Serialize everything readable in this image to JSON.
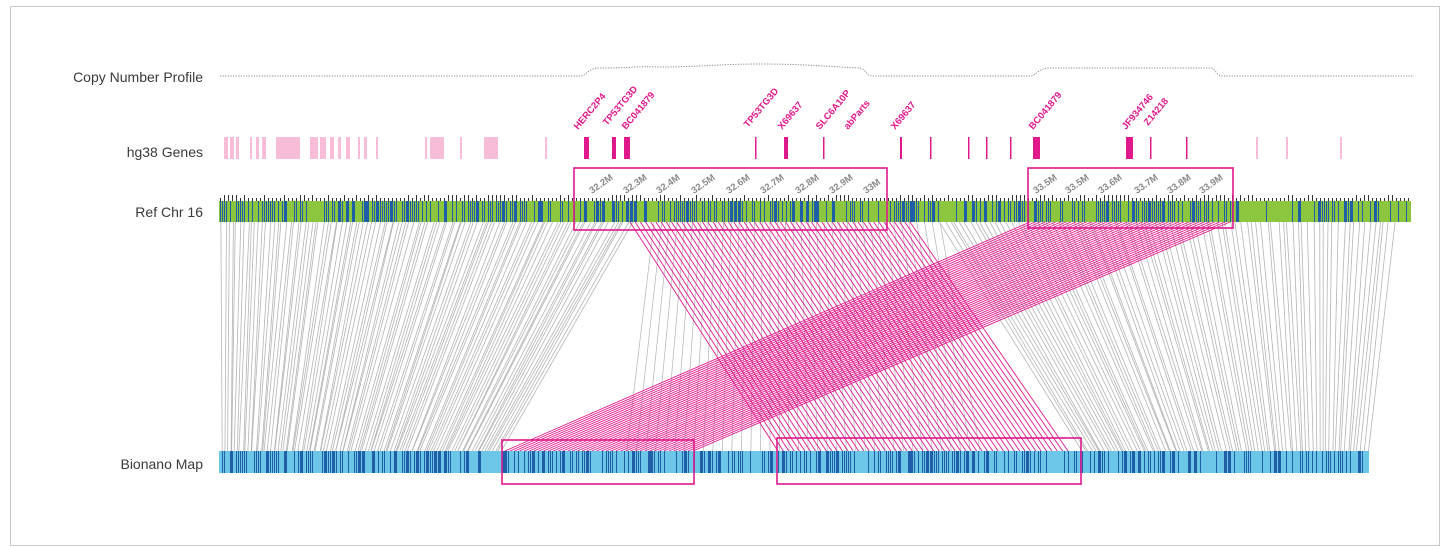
{
  "rows": {
    "copy_number": "Copy Number Profile",
    "genes": "hg38 Genes",
    "ref": "Ref Chr 16",
    "map": "Bionano Map"
  },
  "gene_names": [
    "HERC2P4",
    "TP53TG3D",
    "BC041879",
    "TP53TG3D",
    "X69637",
    "SLC6A10P",
    "abParts",
    "X69637",
    "BC041879",
    "JF934746",
    "Z14218"
  ],
  "ref_ticks": [
    "32.2M",
    "32.3M",
    "32.4M",
    "32.5M",
    "32.6M",
    "32.7M",
    "32.8M",
    "32.9M",
    "33M",
    "33.5M",
    "33.5M",
    "33.6M",
    "33.7M",
    "33.8M",
    "33.9M"
  ],
  "colors": {
    "gene_light": "#f6bcd8",
    "gene_dark": "#e0188c",
    "ref_green": "#8cc63f",
    "ref_blue": "#1f5fa8",
    "map_light": "#6cc6e8",
    "map_dark": "#1f5fa8",
    "alignment_gray": "#b4b4b4",
    "alignment_pink": "#e0188c",
    "highlight_box": "#e0188c"
  }
}
